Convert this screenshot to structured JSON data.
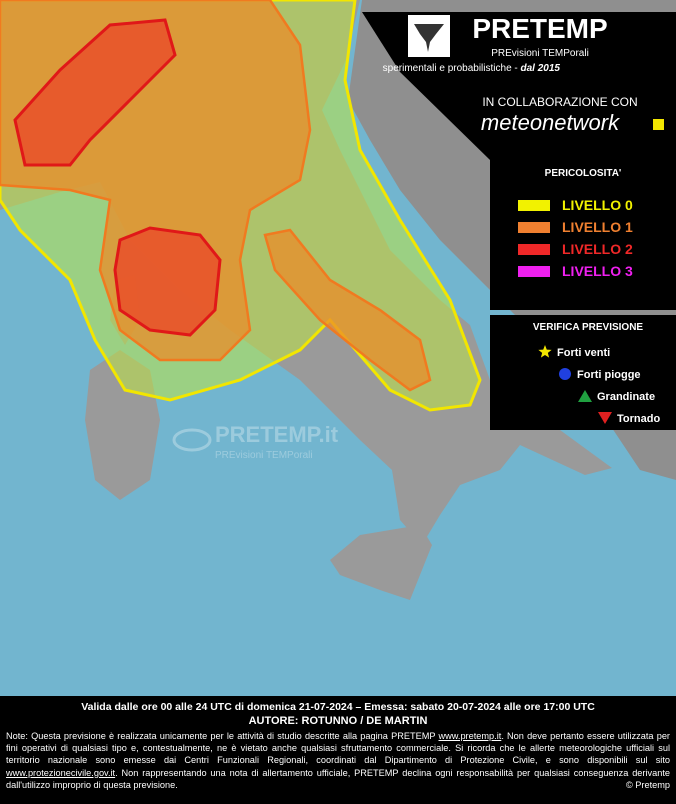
{
  "header": {
    "title": "PRETEMP",
    "subtitle": "PREvisioni TEMPorali",
    "tagline": "sperimentali e probabilistiche - ",
    "tagline_since": "dal 2015"
  },
  "partner": {
    "intro": "IN COLLABORAZIONE CON",
    "name": "meteonetwork"
  },
  "danger_legend": {
    "title": "PERICOLOSITA'",
    "levels": [
      {
        "label": "LIVELLO 0"
      },
      {
        "label": "LIVELLO 1"
      },
      {
        "label": "LIVELLO 2"
      },
      {
        "label": "LIVELLO 3"
      }
    ]
  },
  "verification_legend": {
    "title": "VERIFICA PREVISIONE",
    "items": [
      {
        "label": "Forti venti"
      },
      {
        "label": "Forti piogge"
      },
      {
        "label": "Grandinate"
      },
      {
        "label": "Tornado"
      }
    ]
  },
  "watermark": {
    "title": "PRETEMP.it",
    "subtitle": "PREvisioni TEMPorali"
  },
  "footer": {
    "validity": "Valida dalle ore 00 alle 24 UTC di domenica 21-07-2024 – Emessa: sabato 20-07-2024 alle ore 17:00 UTC",
    "author": "AUTORE: ROTUNNO / DE MARTIN",
    "note": {
      "part1": "Note: Questa previsione è realizzata unicamente per le attività di studio descritte alla pagina PRETEMP ",
      "link1": "www.pretemp.it",
      "part2": ". Non deve pertanto essere utilizzata per fini operativi di qualsiasi tipo e, contestualmente, ne è vietato anche qualsiasi sfruttamento commerciale. Si ricorda che le allerte meteorologiche ufficiali sul territorio nazionale sono emesse dai Centri Funzionali Regionali, coordinati dal Dipartimento di Protezione Civile, e sono disponibili sul sito ",
      "link2": "www.protezionecivile.gov.it",
      "part3": ". Non rappresentando una nota di allertamento ufficiale, PRETEMP declina ogni responsabilità per qualsiasi conseguenza derivante dall'utilizzo improprio di questa previsione."
    },
    "copyright": "© Pretemp"
  }
}
